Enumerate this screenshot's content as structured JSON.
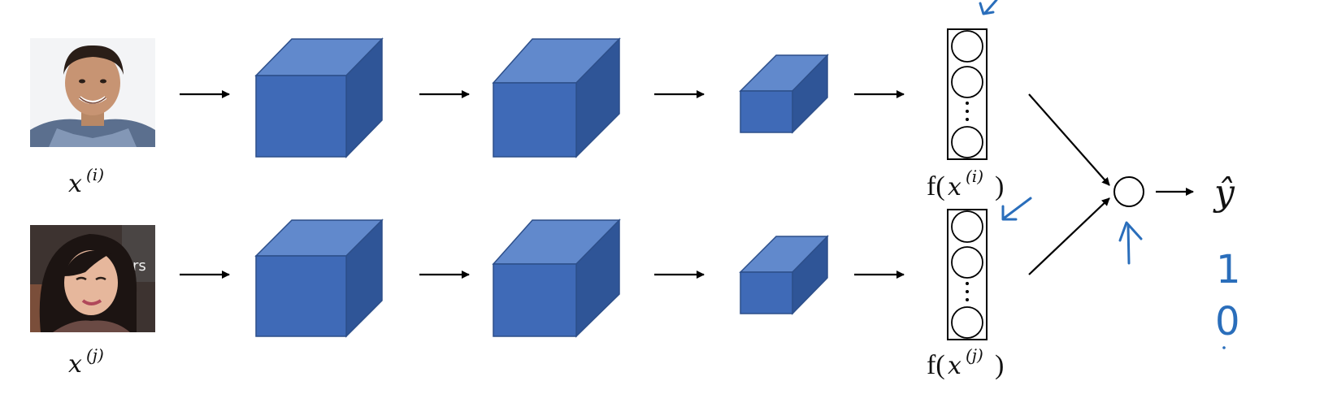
{
  "inputs": [
    {
      "label_base": "x",
      "label_sup": "(i)",
      "photo_icon": "man-portrait-photo",
      "encoding_label_func": "f(",
      "encoding_label_base": "x",
      "encoding_label_sup": "(i)",
      "encoding_label_close": ")"
    },
    {
      "label_base": "x",
      "label_sup": "(j)",
      "photo_icon": "woman-portrait-photo",
      "encoding_label_func": "f(",
      "encoding_label_base": "x",
      "encoding_label_sup": "(j)",
      "encoding_label_close": ")"
    }
  ],
  "photo_text": "rs",
  "output": {
    "label": "ŷ",
    "handwritten_values": [
      "1",
      "0"
    ]
  },
  "colors": {
    "cube_front": "#3f6ab7",
    "cube_top": "#6189cc",
    "cube_side": "#2f5597",
    "annotation_ink": "#2a6ebb"
  }
}
